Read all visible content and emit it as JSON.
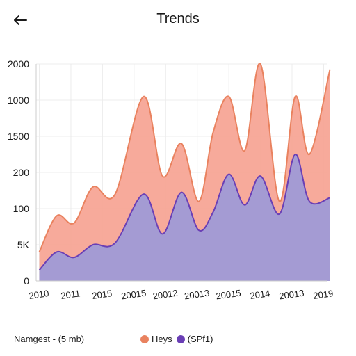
{
  "header": {
    "back_icon": "arrow-left-icon",
    "title": "Trends"
  },
  "footer": {
    "note": "Namgest - (5 mb)"
  },
  "colors": {
    "series_a_fill": "#f7a596",
    "series_a_line": "#e9825f",
    "series_b_fill": "#a49bd3",
    "series_b_line": "#6a3fb5",
    "grid": "#ececec"
  },
  "chart_data": {
    "type": "area",
    "x": [
      "2010",
      "2011",
      "2015",
      "20015",
      "20012",
      "20013",
      "20015",
      "2014",
      "20013",
      "2019"
    ],
    "y_tick_labels": [
      "0",
      "5K",
      "100",
      "200",
      "1500",
      "1000",
      "2000"
    ],
    "ylim": [
      0,
      6
    ],
    "grid": true,
    "legend_position": "bottom",
    "series": [
      {
        "name": "Heys",
        "x": [
          0,
          0.55,
          1.1,
          1.7,
          2.4,
          3.3,
          3.9,
          4.5,
          5.05,
          5.5,
          6.0,
          6.5,
          7.0,
          7.6,
          8.1,
          8.55,
          9.2
        ],
        "y": [
          0.8,
          1.8,
          1.6,
          2.6,
          2.4,
          5.1,
          2.9,
          3.8,
          2.2,
          4.1,
          5.1,
          3.6,
          6.0,
          2.2,
          5.1,
          3.5,
          5.85
        ]
      },
      {
        "name": "(SPf1)",
        "x": [
          0,
          0.55,
          1.1,
          1.7,
          2.4,
          3.3,
          3.9,
          4.5,
          5.05,
          5.5,
          6.0,
          6.5,
          7.0,
          7.6,
          8.1,
          8.55,
          9.2
        ],
        "y": [
          0.3,
          0.8,
          0.65,
          1.0,
          1.05,
          2.4,
          1.3,
          2.45,
          1.4,
          1.9,
          2.95,
          2.1,
          2.9,
          1.85,
          3.5,
          2.2,
          2.3
        ]
      }
    ]
  }
}
